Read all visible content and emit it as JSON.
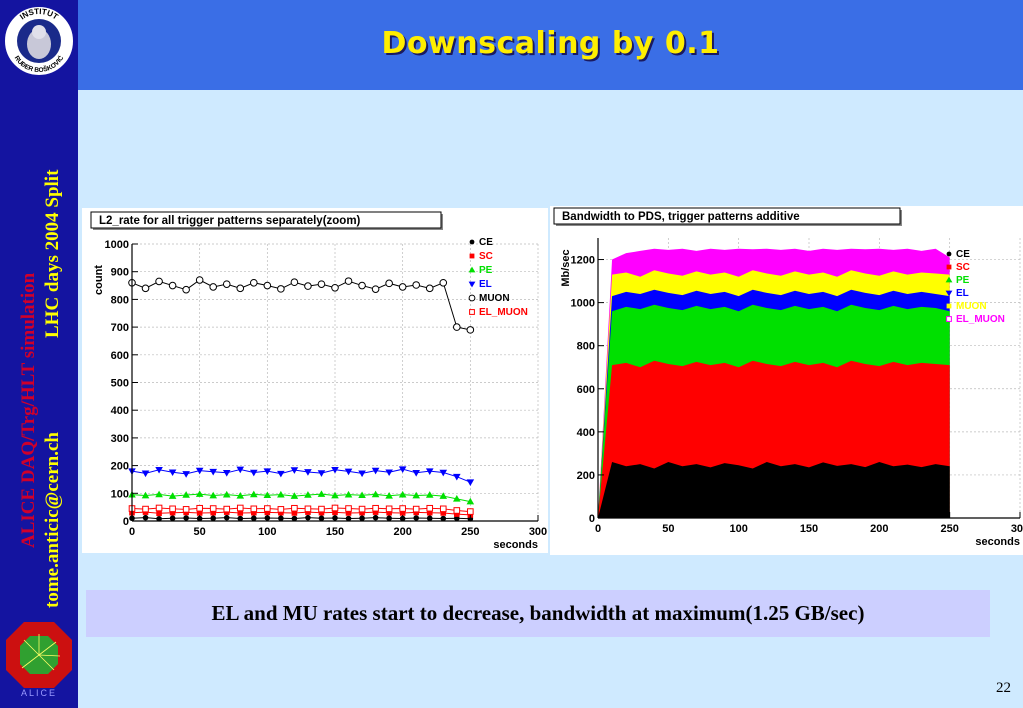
{
  "slide": {
    "title": "Downscaling by 0.1",
    "caption": "EL and MU rates start to decrease, bandwidth at maximum(1.25 GB/sec)",
    "page_number": "22"
  },
  "sidebar": {
    "logo_text_top": "INSTITUT",
    "logo_text_bottom": "RUĐER BOŠKOVIĆ",
    "vertical_text_1": "ALICE DAQ/Trg/HLT simulation",
    "vertical_text_2": "tome.anticic@cern.ch",
    "vertical_text_3": "LHC days 2004 Split",
    "alice_logo_text": "ALICE"
  },
  "colors": {
    "sidebar": "#1414a0",
    "topbar": "#3a6ee6",
    "title": "#ffee00",
    "content_bg": "#cfeaff",
    "caption_bg": "#cccfff",
    "CE": "#000000",
    "SC": "#ff0000",
    "PE": "#00e000",
    "EL": "#0000ff",
    "MUON": "#ffff00",
    "EL_MUON": "#ff00ff"
  },
  "chart_data": [
    {
      "type": "line",
      "title": "L2_rate for all trigger patterns separately(zoom)",
      "xlabel": "seconds",
      "ylabel": "count",
      "xlim": [
        0,
        300
      ],
      "ylim": [
        0,
        1000
      ],
      "xticks": [
        0,
        50,
        100,
        150,
        200,
        250,
        300
      ],
      "yticks": [
        0,
        100,
        200,
        300,
        400,
        500,
        600,
        700,
        800,
        900,
        1000
      ],
      "grid": true,
      "legend_position": "right",
      "series": [
        {
          "name": "CE",
          "marker": "dot",
          "color": "#000000",
          "x": [
            0,
            10,
            20,
            30,
            40,
            50,
            60,
            70,
            80,
            90,
            100,
            110,
            120,
            130,
            140,
            150,
            160,
            170,
            180,
            190,
            200,
            210,
            220,
            230,
            240,
            250
          ],
          "values": [
            10,
            12,
            8,
            10,
            11,
            9,
            10,
            12,
            9,
            10,
            11,
            10,
            9,
            12,
            10,
            11,
            9,
            10,
            12,
            10,
            9,
            11,
            10,
            9,
            10,
            8
          ]
        },
        {
          "name": "SC",
          "marker": "square",
          "color": "#ff0000",
          "x": [
            0,
            10,
            20,
            30,
            40,
            50,
            60,
            70,
            80,
            90,
            100,
            110,
            120,
            130,
            140,
            150,
            160,
            170,
            180,
            190,
            200,
            210,
            220,
            230,
            240,
            250
          ],
          "values": [
            30,
            32,
            28,
            30,
            31,
            29,
            30,
            32,
            29,
            30,
            31,
            30,
            29,
            32,
            30,
            31,
            29,
            30,
            32,
            30,
            29,
            31,
            30,
            29,
            25,
            22
          ]
        },
        {
          "name": "PE",
          "marker": "triangle-up",
          "color": "#00e000",
          "x": [
            0,
            10,
            20,
            30,
            40,
            50,
            60,
            70,
            80,
            90,
            100,
            110,
            120,
            130,
            140,
            150,
            160,
            170,
            180,
            190,
            200,
            210,
            220,
            230,
            240,
            250
          ],
          "values": [
            95,
            92,
            96,
            90,
            94,
            97,
            92,
            95,
            91,
            96,
            93,
            95,
            90,
            94,
            97,
            92,
            95,
            93,
            96,
            91,
            95,
            92,
            94,
            90,
            80,
            70
          ]
        },
        {
          "name": "EL",
          "marker": "triangle-down",
          "color": "#0000ff",
          "x": [
            0,
            10,
            20,
            30,
            40,
            50,
            60,
            70,
            80,
            90,
            100,
            110,
            120,
            130,
            140,
            150,
            160,
            170,
            180,
            190,
            200,
            210,
            220,
            230,
            240,
            250
          ],
          "values": [
            180,
            172,
            185,
            176,
            170,
            182,
            178,
            174,
            186,
            175,
            180,
            171,
            184,
            177,
            173,
            185,
            179,
            172,
            182,
            176,
            187,
            174,
            180,
            175,
            160,
            140
          ]
        },
        {
          "name": "MUON",
          "marker": "circle-open",
          "color": "#000000",
          "x": [
            0,
            10,
            20,
            30,
            40,
            50,
            60,
            70,
            80,
            90,
            100,
            110,
            120,
            130,
            140,
            150,
            160,
            170,
            180,
            190,
            200,
            210,
            220,
            230,
            240,
            250
          ],
          "values": [
            860,
            840,
            865,
            850,
            835,
            870,
            845,
            855,
            840,
            860,
            850,
            838,
            862,
            848,
            855,
            842,
            866,
            850,
            837,
            858,
            845,
            852,
            840,
            860,
            700,
            690
          ]
        },
        {
          "name": "EL_MUON",
          "marker": "square-open",
          "color": "#ff0000",
          "x": [
            0,
            10,
            20,
            30,
            40,
            50,
            60,
            70,
            80,
            90,
            100,
            110,
            120,
            130,
            140,
            150,
            160,
            170,
            180,
            190,
            200,
            210,
            220,
            230,
            240,
            250
          ],
          "values": [
            45,
            43,
            47,
            44,
            42,
            46,
            45,
            43,
            47,
            44,
            45,
            42,
            46,
            44,
            43,
            47,
            45,
            43,
            46,
            44,
            45,
            43,
            46,
            44,
            38,
            34
          ]
        }
      ]
    },
    {
      "type": "area",
      "stacked": true,
      "title": "Bandwidth to PDS, trigger patterns additive",
      "xlabel": "seconds",
      "ylabel": "Mb/sec",
      "xlim": [
        0,
        300
      ],
      "ylim": [
        0,
        1300
      ],
      "xticks": [
        0,
        50,
        100,
        150,
        200,
        250,
        300
      ],
      "yticks": [
        0,
        200,
        400,
        600,
        800,
        1000,
        1200
      ],
      "grid": true,
      "legend_position": "right",
      "series": [
        {
          "name": "CE",
          "color": "#000000",
          "x": [
            0,
            10,
            20,
            30,
            40,
            50,
            60,
            70,
            80,
            90,
            100,
            110,
            120,
            130,
            140,
            150,
            160,
            170,
            180,
            190,
            200,
            210,
            220,
            230,
            240,
            250
          ],
          "cumulative": [
            0,
            260,
            240,
            250,
            230,
            260,
            240,
            250,
            235,
            255,
            245,
            230,
            260,
            240,
            250,
            235,
            258,
            242,
            250,
            236,
            260,
            240,
            248,
            236,
            250,
            240
          ]
        },
        {
          "name": "SC",
          "color": "#ff0000",
          "x": [
            0,
            10,
            20,
            30,
            40,
            50,
            60,
            70,
            80,
            90,
            100,
            110,
            120,
            130,
            140,
            150,
            160,
            170,
            180,
            190,
            200,
            210,
            220,
            230,
            240,
            250
          ],
          "cumulative": [
            0,
            710,
            720,
            700,
            730,
            715,
            705,
            725,
            710,
            720,
            700,
            730,
            715,
            705,
            725,
            710,
            720,
            700,
            730,
            715,
            705,
            725,
            710,
            720,
            715,
            710
          ]
        },
        {
          "name": "PE",
          "color": "#00e000",
          "x": [
            0,
            10,
            20,
            30,
            40,
            50,
            60,
            70,
            80,
            90,
            100,
            110,
            120,
            130,
            140,
            150,
            160,
            170,
            180,
            190,
            200,
            210,
            220,
            230,
            240,
            250
          ],
          "cumulative": [
            0,
            960,
            980,
            970,
            990,
            975,
            965,
            985,
            970,
            980,
            960,
            990,
            975,
            965,
            985,
            970,
            980,
            960,
            990,
            975,
            965,
            985,
            970,
            980,
            975,
            960
          ]
        },
        {
          "name": "EL",
          "color": "#0000ff",
          "x": [
            0,
            10,
            20,
            30,
            40,
            50,
            60,
            70,
            80,
            90,
            100,
            110,
            120,
            130,
            140,
            150,
            160,
            170,
            180,
            190,
            200,
            210,
            220,
            230,
            240,
            250
          ],
          "cumulative": [
            0,
            1030,
            1050,
            1040,
            1060,
            1045,
            1035,
            1055,
            1040,
            1050,
            1030,
            1060,
            1045,
            1035,
            1055,
            1040,
            1050,
            1030,
            1060,
            1045,
            1035,
            1055,
            1040,
            1050,
            1040,
            1030
          ]
        },
        {
          "name": "MUON",
          "color": "#ffff00",
          "x": [
            0,
            10,
            20,
            30,
            40,
            50,
            60,
            70,
            80,
            90,
            100,
            110,
            120,
            130,
            140,
            150,
            160,
            170,
            180,
            190,
            200,
            210,
            220,
            230,
            240,
            250
          ],
          "cumulative": [
            0,
            1130,
            1140,
            1120,
            1150,
            1135,
            1125,
            1145,
            1130,
            1140,
            1120,
            1150,
            1135,
            1125,
            1145,
            1130,
            1140,
            1120,
            1150,
            1135,
            1125,
            1145,
            1130,
            1140,
            1135,
            1130
          ]
        },
        {
          "name": "EL_MUON",
          "color": "#ff00ff",
          "x": [
            0,
            10,
            20,
            30,
            40,
            50,
            60,
            70,
            80,
            90,
            100,
            110,
            120,
            130,
            140,
            150,
            160,
            170,
            180,
            190,
            200,
            210,
            220,
            230,
            240,
            250
          ],
          "cumulative": [
            0,
            1200,
            1230,
            1240,
            1250,
            1245,
            1250,
            1240,
            1250,
            1245,
            1250,
            1248,
            1250,
            1245,
            1250,
            1240,
            1250,
            1245,
            1250,
            1248,
            1250,
            1245,
            1250,
            1240,
            1250,
            1210
          ]
        }
      ]
    }
  ]
}
